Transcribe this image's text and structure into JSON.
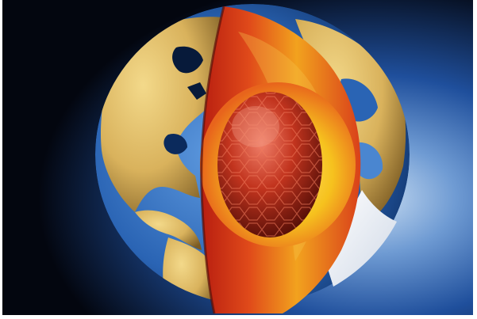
{
  "image": {
    "subject": "earth-core-cutaway",
    "colors": {
      "space_dark": "#03060f",
      "space_blue": "#1f4f9c",
      "space_glow": "#9cc3ea",
      "land_yellow": "#e0c26a",
      "land_tan": "#c9a457",
      "ocean_blue": "#2a64b4",
      "ocean_dark": "#071a3a",
      "mantle_red": "#d9301a",
      "mantle_orange": "#f07a20",
      "outer_core_yellow": "#f6c21e",
      "inner_core_red": "#b8301c",
      "inner_core_dark": "#5a0f08",
      "highlight_white": "#f4f6fa"
    }
  }
}
